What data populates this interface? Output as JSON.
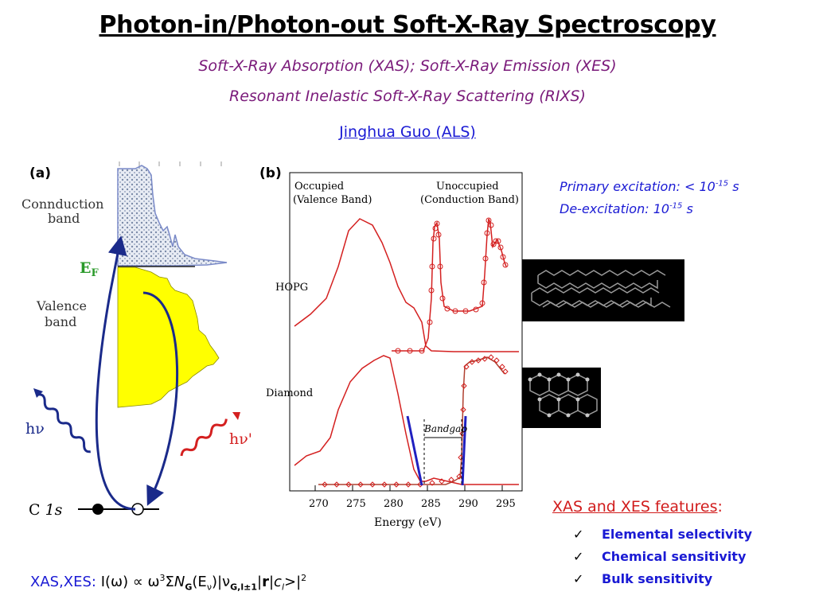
{
  "title": "Photon-in/Photon-out Soft-X-Ray Spectroscopy",
  "subtitle1": "Soft-X-Ray Absorption (XAS); Soft-X-Ray Emission (XES)",
  "subtitle2": "Resonant Inelastic Soft-X-Ray Scattering (RIXS)",
  "author": "Jinghua Guo (ALS)",
  "panel_a": {
    "label": "(a)",
    "conduction_label_1": "Connduction",
    "conduction_label_2": "band",
    "fermi_label": "E",
    "fermi_sub": "F",
    "valence_label_1": "Valence",
    "valence_label_2": "band",
    "photon_in": "hν",
    "photon_out": "hν'",
    "core_label_c": "C",
    "core_label_1s": "1s"
  },
  "panel_b": {
    "label": "(b)",
    "occupied_1": "Occupied",
    "occupied_2": "(Valence Band)",
    "unoccupied_1": "Unoccupied",
    "unoccupied_2": "(Conduction Band)",
    "sample_1": "HOPG",
    "sample_2": "Diamond",
    "bandgap": "Bandgap",
    "xlabel": "Energy (eV)",
    "xticks": [
      "270",
      "275",
      "280",
      "285",
      "290",
      "295"
    ]
  },
  "excitation": {
    "primary_prefix": "Primary excitation: < 10",
    "primary_exp": "-15",
    "primary_unit": " s",
    "deexc_prefix": "De-excitation: 10",
    "deexc_exp": "-15",
    "deexc_unit": " s"
  },
  "features": {
    "title": "XAS and XES features",
    "title_colon": ":",
    "items": [
      "Elemental selectivity",
      "Chemical sensitivity",
      "Bulk sensitivity"
    ],
    "check": "✓"
  },
  "formula": {
    "prefix": "XAS,XES:",
    "text_1": " I(ω) ∝ ω",
    "sup_3": "3",
    "text_2": "Σ",
    "n": "N",
    "n_sub": "G",
    "text_3": "(E",
    "e_sub": "ν",
    "text_4": ")|ν",
    "v_sub": "G,l±1",
    "text_5": "|",
    "r": "r",
    "text_6": "|",
    "c": "c",
    "c_sub": "l",
    "text_7": ">|",
    "sup_2": "2"
  },
  "colors": {
    "title": "#000000",
    "subtitle": "#7a1a7a",
    "author": "#1a1ad4",
    "spectrum": "#d42020",
    "arrow": "#1a2a8a",
    "valence_fill": "#ffff00",
    "feature_title": "#d11c1c"
  }
}
